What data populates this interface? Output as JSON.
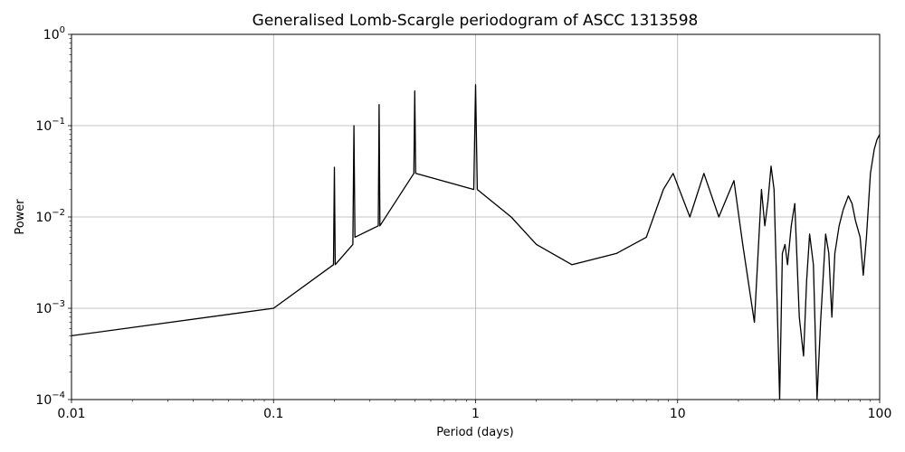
{
  "chart_data": {
    "type": "line",
    "title": "Generalised Lomb-Scargle periodogram of ASCC 1313598",
    "xlabel": "Period (days)",
    "ylabel": "Power",
    "xscale": "log",
    "yscale": "log",
    "xlim": [
      0.01,
      100
    ],
    "ylim": [
      0.0001,
      1
    ],
    "grid": true,
    "line_color": "#000000",
    "x_ticks": [
      {
        "value": 0.01,
        "label": "0.01"
      },
      {
        "value": 0.1,
        "label": "0.1"
      },
      {
        "value": 1,
        "label": "1"
      },
      {
        "value": 10,
        "label": "10"
      },
      {
        "value": 100,
        "label": "100"
      }
    ],
    "y_ticks": [
      {
        "value": 0.0001,
        "base": "10",
        "exp": "−4"
      },
      {
        "value": 0.001,
        "base": "10",
        "exp": "−3"
      },
      {
        "value": 0.01,
        "base": "10",
        "exp": "−2"
      },
      {
        "value": 0.1,
        "base": "10",
        "exp": "−1"
      },
      {
        "value": 1,
        "base": "10",
        "exp": "0"
      }
    ],
    "series": [
      {
        "x": [
          0.01,
          0.1,
          0.198,
          0.2,
          0.202,
          0.247,
          0.25,
          0.253,
          0.33,
          0.333,
          0.336,
          0.495,
          0.5,
          0.505,
          0.98,
          1.0,
          1.02,
          1.5,
          2.0,
          3.0,
          5.0,
          7.0,
          8.5,
          9.5,
          11.5,
          13.5,
          16.0,
          19.0,
          21.0,
          24.0,
          26.0,
          27.0,
          28.0,
          29.0,
          30.0,
          31.0,
          32.0,
          33.0,
          34.0,
          35.0,
          36.5,
          38.0,
          40.0,
          42.0,
          43.5,
          45.0,
          47.0,
          49.0,
          51.0,
          54.0,
          56.0,
          58.0,
          60.0,
          63.0,
          66.0,
          70.0,
          73.0,
          76.0,
          80.0,
          83.0,
          86.0,
          90.0,
          94.0,
          97.0,
          100.0
        ],
        "y": [
          0.0005,
          0.001,
          0.003,
          0.035,
          0.003,
          0.005,
          0.1,
          0.006,
          0.008,
          0.17,
          0.008,
          0.03,
          0.24,
          0.03,
          0.02,
          0.28,
          0.02,
          0.01,
          0.005,
          0.003,
          0.004,
          0.006,
          0.02,
          0.03,
          0.01,
          0.03,
          0.01,
          0.025,
          0.005,
          0.0007,
          0.02,
          0.008,
          0.015,
          0.036,
          0.02,
          0.0015,
          0.0001,
          0.004,
          0.005,
          0.003,
          0.008,
          0.014,
          0.0008,
          0.0003,
          0.002,
          0.0065,
          0.003,
          0.0001,
          0.0007,
          0.0065,
          0.004,
          0.0008,
          0.004,
          0.008,
          0.012,
          0.017,
          0.014,
          0.009,
          0.006,
          0.0023,
          0.006,
          0.03,
          0.055,
          0.07,
          0.08
        ]
      }
    ]
  }
}
